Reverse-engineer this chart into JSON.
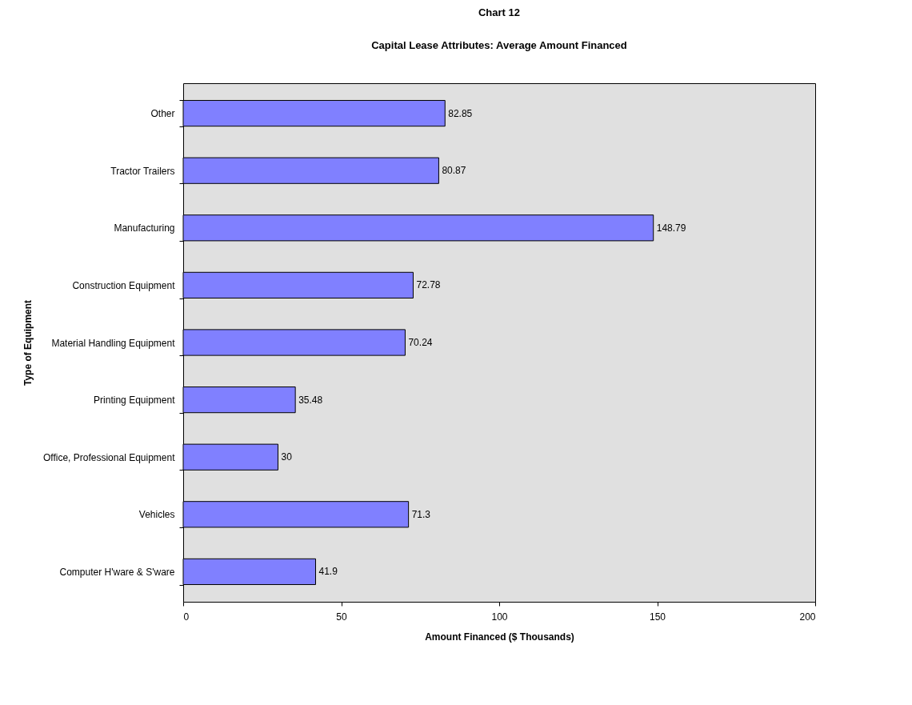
{
  "chart_data": {
    "type": "bar",
    "orientation": "horizontal",
    "title": "Chart 12",
    "subtitle": "Capital Lease Attributes:  Average Amount Financed",
    "xlabel": "Amount Financed ($ Thousands)",
    "ylabel": "Type of Equipment",
    "categories": [
      "Other",
      "Tractor Trailers",
      "Manufacturing",
      "Construction Equipment",
      "Material Handling Equipment",
      "Printing Equipment",
      "Office, Professional Equipment",
      "Vehicles",
      "Computer H'ware & S'ware"
    ],
    "values": [
      82.85,
      80.87,
      148.79,
      72.78,
      70.24,
      35.48,
      30,
      71.3,
      41.9
    ],
    "color": "#8080ff",
    "xlim": [
      0,
      200
    ],
    "xticks": [
      0,
      50,
      100,
      150,
      200
    ],
    "grid": false,
    "data_labels": true
  }
}
